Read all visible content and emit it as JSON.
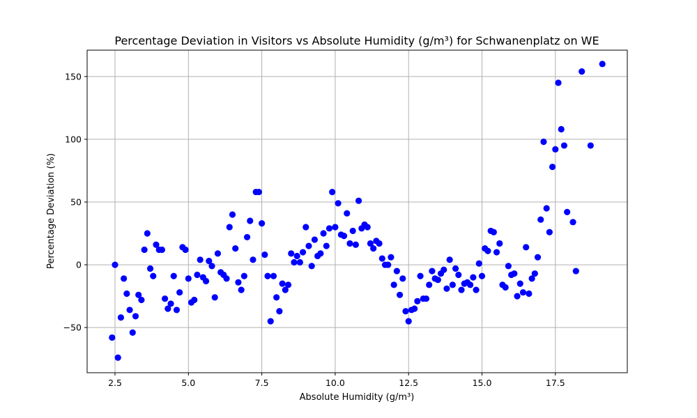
{
  "chart_data": {
    "type": "scatter",
    "title": "Percentage Deviation in Visitors vs Absolute Humidity (g/m³) for Schwanenplatz on WE",
    "xlabel": "Absolute Humidity (g/m³)",
    "ylabel": "Percentage Deviation (%)",
    "xlim": [
      1.55,
      19.95
    ],
    "ylim": [
      -86,
      171
    ],
    "xticks": [
      2.5,
      5.0,
      7.5,
      10.0,
      12.5,
      15.0,
      17.5
    ],
    "xtick_labels": [
      "2.5",
      "5.0",
      "7.5",
      "10.0",
      "12.5",
      "15.0",
      "17.5"
    ],
    "yticks": [
      -50,
      0,
      50,
      100,
      150
    ],
    "ytick_labels": [
      "−50",
      "0",
      "50",
      "100",
      "150"
    ],
    "grid": true,
    "marker_color": "#0000ff",
    "points": [
      [
        2.4,
        -58
      ],
      [
        2.5,
        0
      ],
      [
        2.6,
        -74
      ],
      [
        2.7,
        -42
      ],
      [
        2.8,
        -11
      ],
      [
        2.9,
        -23
      ],
      [
        3.0,
        -36
      ],
      [
        3.1,
        -54
      ],
      [
        3.2,
        -41
      ],
      [
        3.3,
        -24
      ],
      [
        3.4,
        -28
      ],
      [
        3.5,
        12
      ],
      [
        3.6,
        25
      ],
      [
        3.7,
        -3
      ],
      [
        3.8,
        -9
      ],
      [
        3.9,
        16
      ],
      [
        4.0,
        12
      ],
      [
        4.1,
        12
      ],
      [
        4.2,
        -27
      ],
      [
        4.3,
        -35
      ],
      [
        4.4,
        -31
      ],
      [
        4.5,
        -9
      ],
      [
        4.6,
        -36
      ],
      [
        4.7,
        -22
      ],
      [
        4.8,
        14
      ],
      [
        4.9,
        12
      ],
      [
        5.0,
        -11
      ],
      [
        5.1,
        -30
      ],
      [
        5.2,
        -28
      ],
      [
        5.3,
        -8
      ],
      [
        5.4,
        4
      ],
      [
        5.5,
        -10
      ],
      [
        5.6,
        -13
      ],
      [
        5.7,
        3
      ],
      [
        5.8,
        -1
      ],
      [
        5.9,
        -26
      ],
      [
        6.0,
        9
      ],
      [
        6.1,
        -6
      ],
      [
        6.2,
        -8
      ],
      [
        6.3,
        -11
      ],
      [
        6.4,
        30
      ],
      [
        6.5,
        40
      ],
      [
        6.6,
        13
      ],
      [
        6.7,
        -14
      ],
      [
        6.8,
        -20
      ],
      [
        6.9,
        -9
      ],
      [
        7.0,
        22
      ],
      [
        7.1,
        35
      ],
      [
        7.2,
        4
      ],
      [
        7.3,
        58
      ],
      [
        7.4,
        58
      ],
      [
        7.5,
        33
      ],
      [
        7.6,
        8
      ],
      [
        7.7,
        -9
      ],
      [
        7.8,
        -45
      ],
      [
        7.9,
        -9
      ],
      [
        8.0,
        -26
      ],
      [
        8.1,
        -37
      ],
      [
        8.2,
        -15
      ],
      [
        8.3,
        -20
      ],
      [
        8.4,
        -16
      ],
      [
        8.5,
        9
      ],
      [
        8.6,
        2
      ],
      [
        8.7,
        7
      ],
      [
        8.8,
        2
      ],
      [
        8.9,
        10
      ],
      [
        9.0,
        30
      ],
      [
        9.1,
        15
      ],
      [
        9.2,
        -1
      ],
      [
        9.3,
        20
      ],
      [
        9.4,
        7
      ],
      [
        9.5,
        9
      ],
      [
        9.6,
        25
      ],
      [
        9.7,
        15
      ],
      [
        9.8,
        29
      ],
      [
        9.9,
        58
      ],
      [
        10.0,
        30
      ],
      [
        10.1,
        49
      ],
      [
        10.2,
        24
      ],
      [
        10.3,
        23
      ],
      [
        10.4,
        41
      ],
      [
        10.5,
        17
      ],
      [
        10.6,
        27
      ],
      [
        10.7,
        16
      ],
      [
        10.8,
        51
      ],
      [
        10.9,
        29
      ],
      [
        11.0,
        32
      ],
      [
        11.1,
        30
      ],
      [
        11.2,
        17
      ],
      [
        11.3,
        13
      ],
      [
        11.4,
        19
      ],
      [
        11.5,
        17
      ],
      [
        11.6,
        5
      ],
      [
        11.7,
        0
      ],
      [
        11.8,
        0
      ],
      [
        11.9,
        6
      ],
      [
        12.0,
        -16
      ],
      [
        12.1,
        -5
      ],
      [
        12.2,
        -24
      ],
      [
        12.3,
        -11
      ],
      [
        12.4,
        -37
      ],
      [
        12.5,
        -45
      ],
      [
        12.6,
        -36
      ],
      [
        12.7,
        -35
      ],
      [
        12.8,
        -29
      ],
      [
        12.9,
        -9
      ],
      [
        13.0,
        -27
      ],
      [
        13.1,
        -27
      ],
      [
        13.2,
        -16
      ],
      [
        13.3,
        -5
      ],
      [
        13.4,
        -11
      ],
      [
        13.5,
        -12
      ],
      [
        13.6,
        -7
      ],
      [
        13.7,
        -4
      ],
      [
        13.8,
        -19
      ],
      [
        13.9,
        4
      ],
      [
        14.0,
        -16
      ],
      [
        14.1,
        -3
      ],
      [
        14.2,
        -8
      ],
      [
        14.3,
        -20
      ],
      [
        14.4,
        -15
      ],
      [
        14.5,
        -14
      ],
      [
        14.6,
        -16
      ],
      [
        14.7,
        -10
      ],
      [
        14.8,
        -20
      ],
      [
        14.9,
        1
      ],
      [
        15.0,
        -9
      ],
      [
        15.1,
        13
      ],
      [
        15.2,
        11
      ],
      [
        15.3,
        27
      ],
      [
        15.4,
        26
      ],
      [
        15.5,
        10
      ],
      [
        15.6,
        17
      ],
      [
        15.7,
        -16
      ],
      [
        15.8,
        -18
      ],
      [
        15.9,
        -1
      ],
      [
        16.0,
        -8
      ],
      [
        16.1,
        -7
      ],
      [
        16.2,
        -25
      ],
      [
        16.3,
        -15
      ],
      [
        16.4,
        -22
      ],
      [
        16.5,
        14
      ],
      [
        16.6,
        -23
      ],
      [
        16.7,
        -11
      ],
      [
        16.8,
        -7
      ],
      [
        16.9,
        6
      ],
      [
        17.0,
        36
      ],
      [
        17.1,
        98
      ],
      [
        17.2,
        45
      ],
      [
        17.3,
        26
      ],
      [
        17.4,
        78
      ],
      [
        17.5,
        92
      ],
      [
        17.6,
        145
      ],
      [
        17.7,
        108
      ],
      [
        17.8,
        95
      ],
      [
        17.9,
        42
      ],
      [
        18.1,
        34
      ],
      [
        18.2,
        -5
      ],
      [
        18.4,
        154
      ],
      [
        18.7,
        95
      ],
      [
        19.1,
        160
      ]
    ]
  }
}
